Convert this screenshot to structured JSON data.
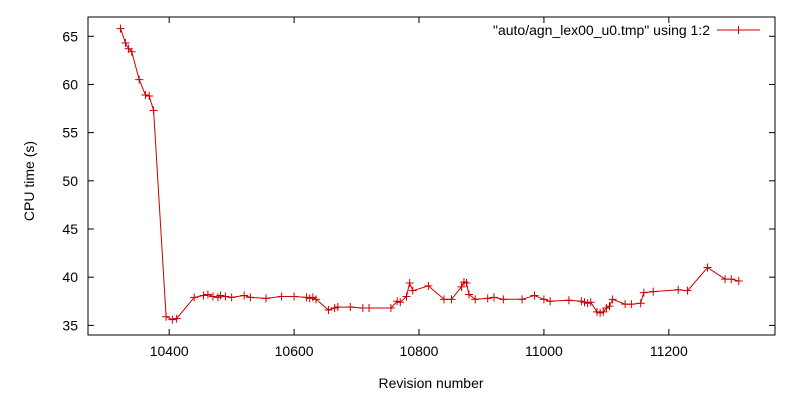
{
  "chart_data": {
    "type": "line",
    "title": "",
    "xlabel": "Revision number",
    "ylabel": "CPU time (s)",
    "xlim": [
      10270,
      11370
    ],
    "ylim": [
      34,
      67
    ],
    "xticks": [
      10400,
      10600,
      10800,
      11000,
      11200
    ],
    "yticks": [
      35,
      40,
      45,
      50,
      55,
      60,
      65
    ],
    "grid": false,
    "legend_position": "top-right",
    "color": "#cc0000",
    "series": [
      {
        "name": "\"auto/agn_lex00_u0.tmp\" using 1:2",
        "x": [
          10322,
          10330,
          10335,
          10340,
          10352,
          10362,
          10368,
          10375,
          10395,
          10405,
          10412,
          10440,
          10455,
          10462,
          10470,
          10478,
          10482,
          10490,
          10500,
          10520,
          10530,
          10555,
          10580,
          10600,
          10620,
          10625,
          10630,
          10635,
          10655,
          10665,
          10670,
          10690,
          10710,
          10720,
          10755,
          10765,
          10770,
          10780,
          10785,
          10790,
          10815,
          10840,
          10852,
          10868,
          10872,
          10876,
          10880,
          10890,
          10910,
          10920,
          10935,
          10965,
          10985,
          11000,
          11010,
          11040,
          11060,
          11065,
          11070,
          11075,
          11085,
          11090,
          11095,
          11100,
          11105,
          11110,
          11130,
          11140,
          11155,
          11160,
          11175,
          11215,
          11230,
          11262,
          11290,
          11300,
          11312
        ],
        "y": [
          65.8,
          64.3,
          63.7,
          63.4,
          60.5,
          58.9,
          58.8,
          57.3,
          35.9,
          35.6,
          35.7,
          37.9,
          38.1,
          38.2,
          38.0,
          37.9,
          38.1,
          38.0,
          37.9,
          38.1,
          37.9,
          37.8,
          38.0,
          38.0,
          37.9,
          37.8,
          37.9,
          37.7,
          36.6,
          36.8,
          36.9,
          36.9,
          36.8,
          36.8,
          36.8,
          37.5,
          37.4,
          38.0,
          39.4,
          38.6,
          39.1,
          37.7,
          37.7,
          39.0,
          39.5,
          39.4,
          38.2,
          37.7,
          37.8,
          37.9,
          37.7,
          37.7,
          38.1,
          37.7,
          37.5,
          37.6,
          37.5,
          37.4,
          37.3,
          37.4,
          36.4,
          36.3,
          36.4,
          36.8,
          37.0,
          37.7,
          37.2,
          37.2,
          37.3,
          38.4,
          38.5,
          38.7,
          38.6,
          41.0,
          39.8,
          39.8,
          39.6
        ]
      }
    ]
  }
}
